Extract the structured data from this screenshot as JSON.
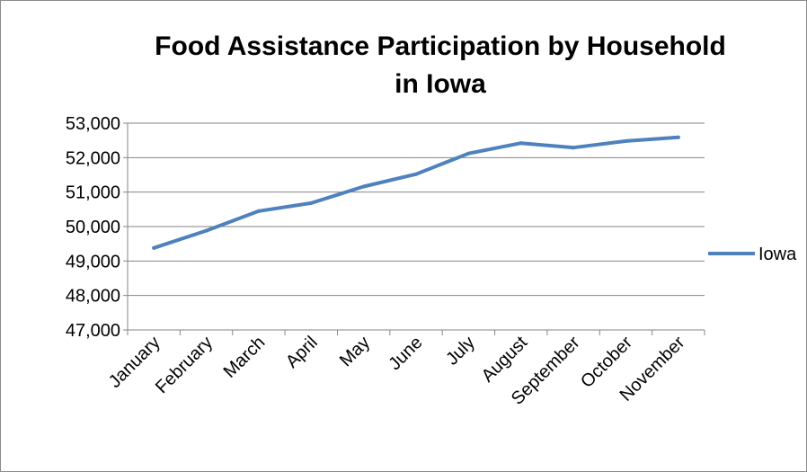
{
  "chart_data": {
    "type": "line",
    "title_lines": [
      "Food Assistance Participation  by Household",
      "in Iowa"
    ],
    "categories": [
      "January",
      "February",
      "March",
      "April",
      "May",
      "June",
      "July",
      "August",
      "September",
      "October",
      "November"
    ],
    "series": [
      {
        "name": "Iowa",
        "color": "#4f81bd",
        "values": [
          49380,
          49880,
          50450,
          50680,
          51160,
          51520,
          52120,
          52420,
          52290,
          52480,
          52590
        ]
      }
    ],
    "yticks": [
      "47,000",
      "48,000",
      "49,000",
      "50,000",
      "51,000",
      "52,000",
      "53,000"
    ],
    "ylim": [
      47000,
      53000
    ],
    "grid": true,
    "legend_position": "right"
  }
}
